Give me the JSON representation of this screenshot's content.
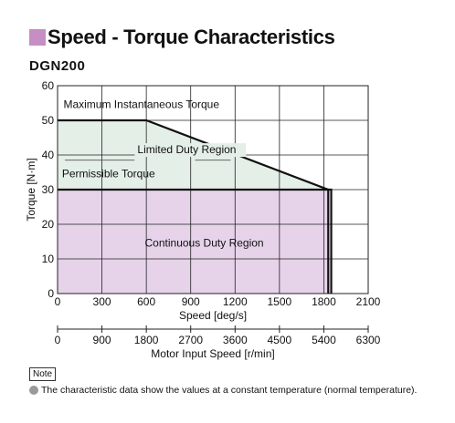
{
  "header": {
    "title": "Speed - Torque Characteristics",
    "model": "DGN200",
    "accent_color": "#c58fc3"
  },
  "chart_data": {
    "type": "area",
    "xlabel": "Speed [deg/s]",
    "x2label": "Motor Input Speed [r/min]",
    "ylabel": "Torque [N·m]",
    "xlim": [
      0,
      2100
    ],
    "ylim": [
      0,
      60
    ],
    "x_ticks": [
      "0",
      "300",
      "600",
      "900",
      "1200",
      "1500",
      "1800",
      "2100"
    ],
    "x2_ticks": [
      "0",
      "900",
      "1800",
      "2700",
      "3600",
      "4500",
      "5400",
      "6300"
    ],
    "y_ticks": [
      "0",
      "10",
      "20",
      "30",
      "40",
      "50",
      "60"
    ],
    "grid": true,
    "regions": [
      {
        "name": "Limited Duty Region",
        "color": "#e4efe8",
        "points": [
          [
            0,
            30
          ],
          [
            0,
            50
          ],
          [
            600,
            50
          ],
          [
            1830,
            30
          ]
        ]
      },
      {
        "name": "Continuous Duty Region",
        "color": "#e6d3ea",
        "points": [
          [
            0,
            0
          ],
          [
            0,
            30
          ],
          [
            1830,
            30
          ],
          [
            1830,
            0
          ]
        ]
      }
    ],
    "lines": [
      {
        "name": "Maximum Instantaneous Torque",
        "points": [
          [
            0,
            50
          ],
          [
            600,
            50
          ],
          [
            1830,
            30
          ],
          [
            1850,
            30
          ],
          [
            1850,
            0
          ]
        ]
      },
      {
        "name": "Permissible Torque",
        "points": [
          [
            0,
            30
          ],
          [
            1830,
            30
          ],
          [
            1830,
            0
          ]
        ]
      }
    ],
    "annotations": [
      {
        "text": "Maximum Instantaneous Torque",
        "x": 40,
        "y": 53.5
      },
      {
        "text": "Limited Duty Region",
        "x": 540,
        "y": 40.5
      },
      {
        "text": "Permissible Torque",
        "x": 30,
        "y": 33.5
      },
      {
        "text": "Continuous Duty Region",
        "x": 590,
        "y": 13.5
      }
    ]
  },
  "note": {
    "label": "Note",
    "text": "The characteristic data show the values at a constant temperature (normal temperature)."
  }
}
